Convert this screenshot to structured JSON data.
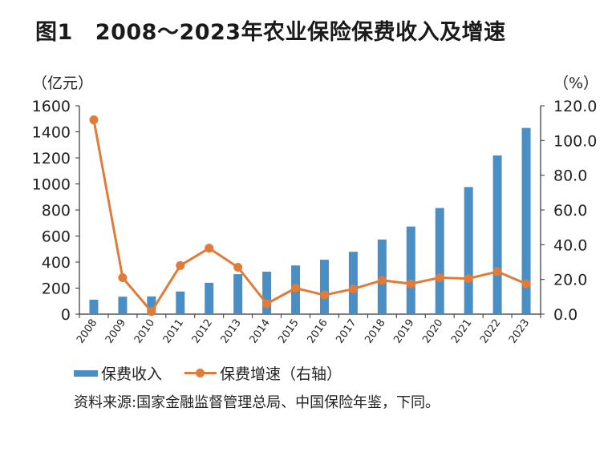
{
  "figure": {
    "title_num": "图1",
    "title_text": "2008～2023年农业保险保费收入及增速",
    "source": "资料来源:国家金融监督管理总局、中国保险年鉴，下同。"
  },
  "colors": {
    "bar": "#4a8ec6",
    "line": "#e07b39",
    "axis": "#333333"
  },
  "chart_data": {
    "type": "bar",
    "categories": [
      "2008",
      "2009",
      "2010",
      "2011",
      "2012",
      "2013",
      "2014",
      "2015",
      "2016",
      "2017",
      "2018",
      "2019",
      "2020",
      "2021",
      "2022",
      "2023"
    ],
    "series": [
      {
        "name": "保费收入",
        "type": "bar",
        "axis": "left",
        "values": [
          111,
          134,
          136,
          174,
          241,
          307,
          326,
          374,
          418,
          479,
          573,
          673,
          815,
          976,
          1219,
          1430
        ]
      },
      {
        "name": "保费增速（右轴）",
        "type": "line",
        "axis": "right",
        "values": [
          111.9,
          21.0,
          1.5,
          28.0,
          38.0,
          27.0,
          6.0,
          15.0,
          11.0,
          14.5,
          19.5,
          17.5,
          21.0,
          20.5,
          24.5,
          17.5
        ]
      }
    ],
    "y_left": {
      "label": "（亿元）",
      "ylim": [
        0,
        1600
      ],
      "ticks": [
        "0",
        "200",
        "400",
        "600",
        "800",
        "1000",
        "1200",
        "1400",
        "1600"
      ]
    },
    "y_right": {
      "label": "（%）",
      "ylim": [
        0,
        120
      ],
      "ticks": [
        "0.0",
        "20.0",
        "40.0",
        "60.0",
        "80.0",
        "100.0",
        "120.0"
      ]
    },
    "grid": false,
    "legend_position": "bottom-left"
  }
}
